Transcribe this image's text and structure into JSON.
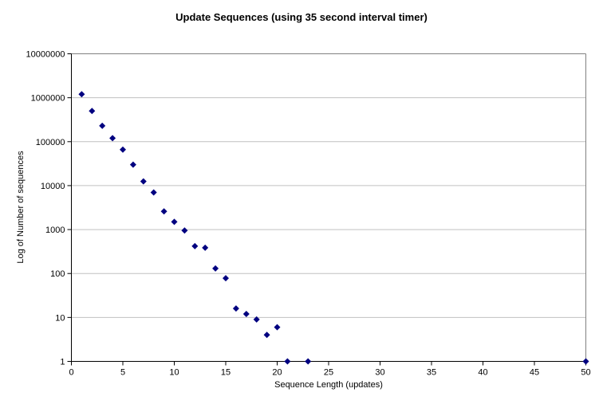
{
  "chart_data": {
    "type": "scatter",
    "title": "Update Sequences (using 35 second interval timer)",
    "xlabel": "Sequence Length (updates)",
    "ylabel": "Log of Number of sequences",
    "x": [
      1,
      2,
      3,
      4,
      5,
      6,
      7,
      8,
      9,
      10,
      11,
      12,
      13,
      14,
      15,
      16,
      17,
      18,
      19,
      20,
      21,
      23,
      50
    ],
    "values": [
      1200000,
      500000,
      230000,
      120000,
      66000,
      30000,
      12500,
      7000,
      2600,
      1500,
      950,
      420,
      385,
      130,
      78,
      16,
      12,
      9,
      4,
      6,
      1,
      1,
      1
    ],
    "xlim": [
      0,
      50
    ],
    "xtick_step": 5,
    "xtick_labels": [
      "0",
      "5",
      "10",
      "15",
      "20",
      "25",
      "30",
      "35",
      "40",
      "45",
      "50"
    ],
    "y_scale": "log10",
    "ylim": [
      1,
      10000000
    ],
    "ytick_labels": [
      "1",
      "10",
      "100",
      "1000",
      "10000",
      "100000",
      "1000000",
      "10000000"
    ],
    "grid": "horizontal-only",
    "legend": "none",
    "marker": {
      "shape": "diamond",
      "color": "#000080",
      "size": 7
    },
    "colors": {
      "background": "#ffffff",
      "plot_background": "#ffffff",
      "gridline": "#c0c0c0",
      "plot_border": "#808080",
      "axis": "#000000",
      "text": "#000000"
    }
  }
}
